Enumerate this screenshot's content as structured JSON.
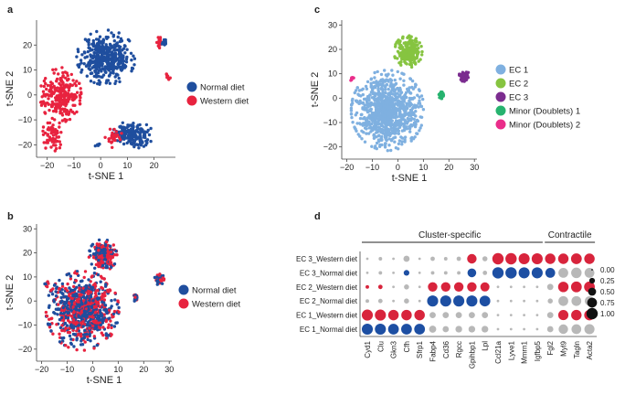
{
  "colors": {
    "normal": "#1f4e9e",
    "western": "#e8233f",
    "ec1": "#7fb0e0",
    "ec2": "#86c440",
    "ec3": "#7b2c8f",
    "minor1": "#27b36f",
    "minor2": "#ea2d8a",
    "dot_high": "#d8243c",
    "dot_low": "#1d4fa3",
    "dot_neutral": "#b8b8b8"
  },
  "chart_data": [
    {
      "panel": "a",
      "type": "scatter",
      "xlabel": "t-SNE 1",
      "ylabel": "t-SNE 2",
      "xticks": [
        "−20",
        "−10",
        "0",
        "10",
        "20"
      ],
      "yticks": [
        "20",
        "10",
        "0",
        "−10",
        "−20"
      ],
      "xlim": [
        -24,
        28
      ],
      "ylim": [
        -25,
        30
      ],
      "legend": [
        "Normal diet",
        "Western diet"
      ],
      "clusters": [
        {
          "series": "Normal diet",
          "cx": 2,
          "cy": 15,
          "rx": 10,
          "ry": 10,
          "n": 420
        },
        {
          "series": "Western diet",
          "cx": -15,
          "cy": 0,
          "rx": 7,
          "ry": 10,
          "n": 260
        },
        {
          "series": "Western diet",
          "cx": -18,
          "cy": -16,
          "rx": 4,
          "ry": 6,
          "n": 60
        },
        {
          "series": "Normal diet",
          "cx": 12,
          "cy": -16,
          "rx": 7,
          "ry": 5,
          "n": 170
        },
        {
          "series": "Western diet",
          "cx": 5,
          "cy": -17,
          "rx": 3,
          "ry": 4,
          "n": 30
        },
        {
          "series": "Western diet",
          "cx": 22,
          "cy": 21,
          "rx": 1,
          "ry": 2,
          "n": 18
        },
        {
          "series": "Normal diet",
          "cx": 24,
          "cy": 21,
          "rx": 1,
          "ry": 2,
          "n": 18
        },
        {
          "series": "Western diet",
          "cx": 25,
          "cy": 7,
          "rx": 1,
          "ry": 2,
          "n": 10
        },
        {
          "series": "Normal diet",
          "cx": -1,
          "cy": -20,
          "rx": 1,
          "ry": 1,
          "n": 6
        }
      ]
    },
    {
      "panel": "b",
      "type": "scatter",
      "xlabel": "t-SNE 1",
      "ylabel": "t-SNE 2",
      "xticks": [
        "−20",
        "−10",
        "0",
        "10",
        "20",
        "30"
      ],
      "yticks": [
        "30",
        "20",
        "10",
        "0",
        "−10",
        "−20"
      ],
      "xlim": [
        -22,
        31
      ],
      "ylim": [
        -25,
        32
      ],
      "legend": [
        "Normal diet",
        "Western diet"
      ],
      "clusters": [
        {
          "series": "mixed",
          "cx": -4,
          "cy": -4,
          "rx": 13,
          "ry": 15,
          "n": 900
        },
        {
          "series": "mixed",
          "cx": 4,
          "cy": 19,
          "rx": 5,
          "ry": 6,
          "n": 220
        },
        {
          "series": "mixed",
          "cx": 26,
          "cy": 9,
          "rx": 2,
          "ry": 2,
          "n": 40
        },
        {
          "series": "mixed",
          "cx": 17,
          "cy": 1,
          "rx": 1,
          "ry": 2,
          "n": 20
        },
        {
          "series": "mixed",
          "cx": -18,
          "cy": 7,
          "rx": 1,
          "ry": 1,
          "n": 10
        }
      ]
    },
    {
      "panel": "c",
      "type": "scatter",
      "xlabel": "t-SNE 1",
      "ylabel": "t-SNE 2",
      "xticks": [
        "−20",
        "−10",
        "0",
        "10",
        "20",
        "30"
      ],
      "yticks": [
        "30",
        "20",
        "10",
        "0",
        "−10",
        "−20"
      ],
      "xlim": [
        -22,
        31
      ],
      "ylim": [
        -25,
        32
      ],
      "legend": [
        "EC 1",
        "EC 2",
        "EC 3",
        "Minor (Doublets) 1",
        "Minor (Doublets) 2"
      ],
      "clusters": [
        {
          "series": "EC 1",
          "cx": -4,
          "cy": -5,
          "rx": 13,
          "ry": 15,
          "n": 900
        },
        {
          "series": "EC 2",
          "cx": 4,
          "cy": 19,
          "rx": 5,
          "ry": 6,
          "n": 240
        },
        {
          "series": "EC 3",
          "cx": 26,
          "cy": 9,
          "rx": 2,
          "ry": 2,
          "n": 45
        },
        {
          "series": "Minor (Doublets) 1",
          "cx": 17,
          "cy": 1,
          "rx": 1,
          "ry": 2,
          "n": 22
        },
        {
          "series": "Minor (Doublets) 2",
          "cx": -18,
          "cy": 8,
          "rx": 1,
          "ry": 1,
          "n": 10
        }
      ]
    },
    {
      "panel": "d",
      "type": "dotplot",
      "groups": [
        "Cluster-specific",
        "Contractile"
      ],
      "genes": [
        "Cyd1",
        "Clu",
        "Gkn3",
        "Cfh",
        "Sfrp1",
        "Fabp4",
        "Cd36",
        "Rgcc",
        "Gpihbp1",
        "Lpl",
        "Ccl21a",
        "Lyve1",
        "Mmrn1",
        "Igfbp5",
        "Fgl2",
        "Myl9",
        "Tagln",
        "Acta2"
      ],
      "rows": [
        "EC 3_Western diet",
        "EC 3_Normal diet",
        "EC 2_Western diet",
        "EC 2_Normal diet",
        "EC 1_Western diet",
        "EC 1_Normal diet"
      ],
      "size_legend": [
        "0.00",
        "0.25",
        "0.50",
        "0.75",
        "1.00"
      ],
      "fraction": [
        [
          0.05,
          0.1,
          0.05,
          0.3,
          0.05,
          0.15,
          0.1,
          0.15,
          0.7,
          0.2,
          1.0,
          1.0,
          0.95,
          0.95,
          0.85,
          0.85,
          0.9,
          0.85
        ],
        [
          0.05,
          0.1,
          0.05,
          0.25,
          0.05,
          0.1,
          0.1,
          0.1,
          0.6,
          0.15,
          1.0,
          1.0,
          0.95,
          0.95,
          0.75,
          0.75,
          0.85,
          0.75
        ],
        [
          0.1,
          0.15,
          0.05,
          0.2,
          0.05,
          0.7,
          0.7,
          0.7,
          0.7,
          0.65,
          0.05,
          0.05,
          0.05,
          0.05,
          0.3,
          0.85,
          0.9,
          0.9
        ],
        [
          0.1,
          0.15,
          0.05,
          0.2,
          0.05,
          0.95,
          0.95,
          0.95,
          0.95,
          0.9,
          0.05,
          0.05,
          0.05,
          0.05,
          0.2,
          0.75,
          0.75,
          0.7
        ],
        [
          0.95,
          0.95,
          0.85,
          0.85,
          0.85,
          0.3,
          0.3,
          0.3,
          0.3,
          0.3,
          0.05,
          0.05,
          0.05,
          0.05,
          0.3,
          0.8,
          0.85,
          0.85
        ],
        [
          0.95,
          0.95,
          0.9,
          0.9,
          0.9,
          0.4,
          0.3,
          0.35,
          0.35,
          0.35,
          0.05,
          0.05,
          0.05,
          0.05,
          0.3,
          0.7,
          0.75,
          0.8
        ]
      ],
      "color": [
        [
          "n",
          "n",
          "n",
          "n",
          "n",
          "n",
          "n",
          "n",
          "h",
          "n",
          "h",
          "h",
          "h",
          "h",
          "h",
          "h",
          "h",
          "h"
        ],
        [
          "n",
          "n",
          "n",
          "l",
          "n",
          "n",
          "n",
          "n",
          "l",
          "n",
          "l",
          "l",
          "l",
          "l",
          "l",
          "n",
          "n",
          "n"
        ],
        [
          "h",
          "h",
          "n",
          "n",
          "n",
          "h",
          "h",
          "h",
          "h",
          "h",
          "n",
          "n",
          "n",
          "n",
          "n",
          "h",
          "h",
          "h"
        ],
        [
          "n",
          "n",
          "n",
          "n",
          "n",
          "l",
          "l",
          "l",
          "l",
          "l",
          "n",
          "n",
          "n",
          "n",
          "n",
          "n",
          "n",
          "n"
        ],
        [
          "h",
          "h",
          "h",
          "h",
          "h",
          "n",
          "n",
          "n",
          "n",
          "n",
          "n",
          "n",
          "n",
          "n",
          "n",
          "h",
          "h",
          "h"
        ],
        [
          "l",
          "l",
          "l",
          "l",
          "l",
          "n",
          "n",
          "n",
          "n",
          "n",
          "n",
          "n",
          "n",
          "n",
          "n",
          "n",
          "n",
          "n"
        ]
      ]
    }
  ],
  "panels": {
    "a": {
      "letter": "a"
    },
    "b": {
      "letter": "b"
    },
    "c": {
      "letter": "c"
    },
    "d": {
      "letter": "d"
    }
  }
}
